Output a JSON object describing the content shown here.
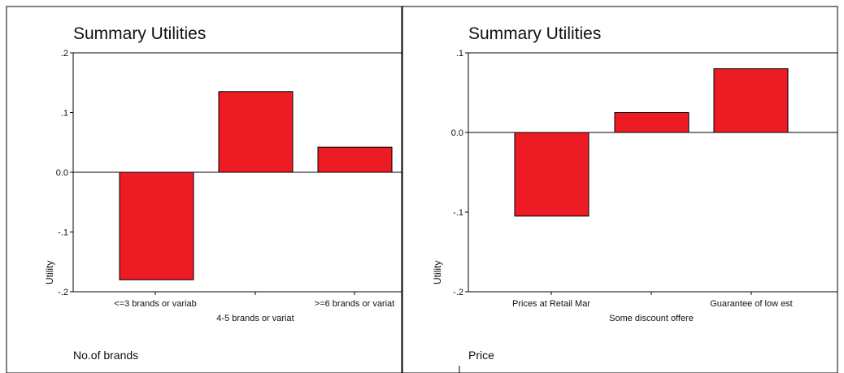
{
  "chart_data": [
    {
      "type": "bar",
      "title": "Summary Utilities",
      "ylabel": "Utility",
      "xlabel": "No.of brands",
      "categories": [
        "<=3 brands or variab",
        "4-5 brands or variat",
        ">=6 brands or variat"
      ],
      "values": [
        -0.18,
        0.135,
        0.042
      ],
      "ylim": [
        -0.2,
        0.2
      ],
      "yticks": [
        ".2",
        ".1",
        "0.0",
        "-.1",
        "-.2"
      ],
      "bar_color": "#ed1c24",
      "grid": false,
      "reference_line": 0
    },
    {
      "type": "bar",
      "title": "Summary Utilities",
      "ylabel": "Utility",
      "xlabel": "Price",
      "categories": [
        "Prices at Retail Mar",
        "Some discount offere",
        "Guarantee of low est"
      ],
      "values": [
        -0.105,
        0.025,
        0.08
      ],
      "ylim": [
        -0.2,
        0.1
      ],
      "yticks": [
        ".1",
        "0.0",
        "-.1",
        "-.2"
      ],
      "bar_color": "#ed1c24",
      "grid": false,
      "reference_line": 0
    }
  ]
}
